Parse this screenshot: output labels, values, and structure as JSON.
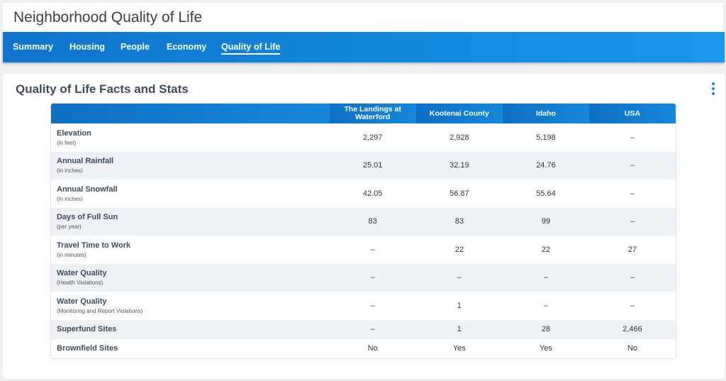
{
  "header": {
    "title": "Neighborhood Quality of Life"
  },
  "nav": {
    "items": [
      {
        "label": "Summary"
      },
      {
        "label": "Housing"
      },
      {
        "label": "People"
      },
      {
        "label": "Economy"
      },
      {
        "label": "Quality of Life",
        "active": true
      }
    ]
  },
  "card": {
    "title": "Quality of Life Facts and Stats",
    "menu_icon": "kebab-vertical-icon"
  },
  "table": {
    "columns": [
      "The Landings at Waterford",
      "Kootenai County",
      "Idaho",
      "USA"
    ],
    "rows": [
      {
        "name": "Elevation",
        "unit": "(in feet)",
        "values": [
          "2,297",
          "2,928",
          "5,198",
          "–"
        ]
      },
      {
        "name": "Annual Rainfall",
        "unit": "(in inches)",
        "values": [
          "25.01",
          "32.19",
          "24.76",
          "–"
        ]
      },
      {
        "name": "Annual Snowfall",
        "unit": "(in inches)",
        "values": [
          "42.05",
          "56.87",
          "55.64",
          "–"
        ]
      },
      {
        "name": "Days of Full Sun",
        "unit": "(per year)",
        "values": [
          "83",
          "83",
          "99",
          "–"
        ]
      },
      {
        "name": "Travel Time to Work",
        "unit": "(in minutes)",
        "values": [
          "–",
          "22",
          "22",
          "27"
        ]
      },
      {
        "name": "Water Quality",
        "unit": "(Health Violations)",
        "values": [
          "–",
          "–",
          "–",
          "–"
        ]
      },
      {
        "name": "Water Quality",
        "unit": "(Monitoring and Report Violations)",
        "values": [
          "–",
          "1",
          "–",
          "–"
        ]
      },
      {
        "name": "Superfund Sites",
        "unit": "",
        "values": [
          "–",
          "1",
          "28",
          "2,466"
        ]
      },
      {
        "name": "Brownfield Sites",
        "unit": "",
        "values": [
          "No",
          "Yes",
          "Yes",
          "No"
        ]
      }
    ]
  },
  "colors": {
    "accent": "#1784d9",
    "nav_bg": "#118bdf",
    "row_alt": "#eef1f6"
  }
}
